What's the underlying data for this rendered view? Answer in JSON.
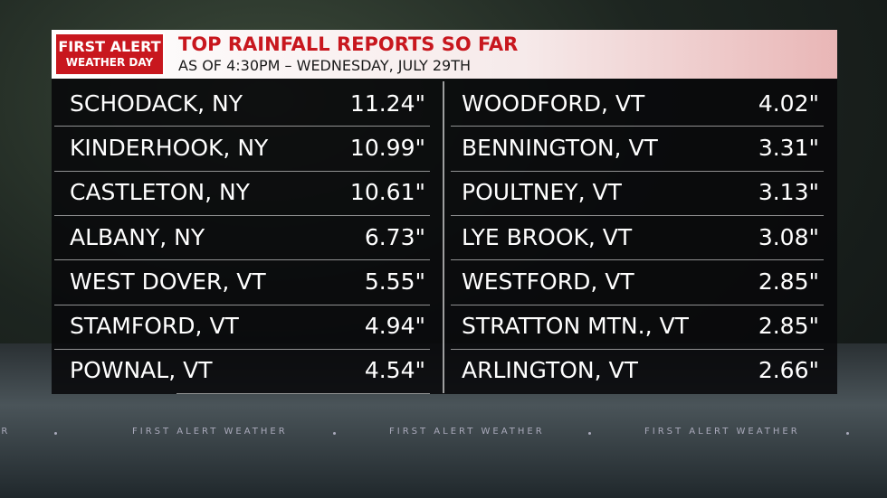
{
  "header": {
    "logo_top": "FIRST ALERT",
    "logo_bottom": "WEATHER DAY",
    "title": "TOP RAINFALL REPORTS SO FAR",
    "subtitle": "AS OF 4:30PM – WEDNESDAY, JULY 29TH"
  },
  "table": {
    "rows": [
      [
        "SCHODACK, NY",
        "11.24\"",
        "WOODFORD, VT",
        "4.02\""
      ],
      [
        "KINDERHOOK, NY",
        "10.99\"",
        "BENNINGTON, VT",
        "3.31\""
      ],
      [
        "CASTLETON, NY",
        "10.61\"",
        "POULTNEY, VT",
        "3.13\""
      ],
      [
        "ALBANY, NY",
        "6.73\"",
        "LYE BROOK, VT",
        "3.08\""
      ],
      [
        "WEST DOVER, VT",
        "5.55\"",
        "WESTFORD, VT",
        "2.85\""
      ],
      [
        "STAMFORD, VT",
        "4.94\"",
        "STRATTON MTN., VT",
        "2.85\""
      ],
      [
        "POWNAL, VT",
        "4.54\"",
        "ARLINGTON, VT",
        "2.66\""
      ]
    ]
  },
  "ticker": [
    "ER",
    "FIRST ALERT WEATHER",
    "FIRST ALERT WEATHER",
    "FIRST ALERT WEATHER"
  ]
}
